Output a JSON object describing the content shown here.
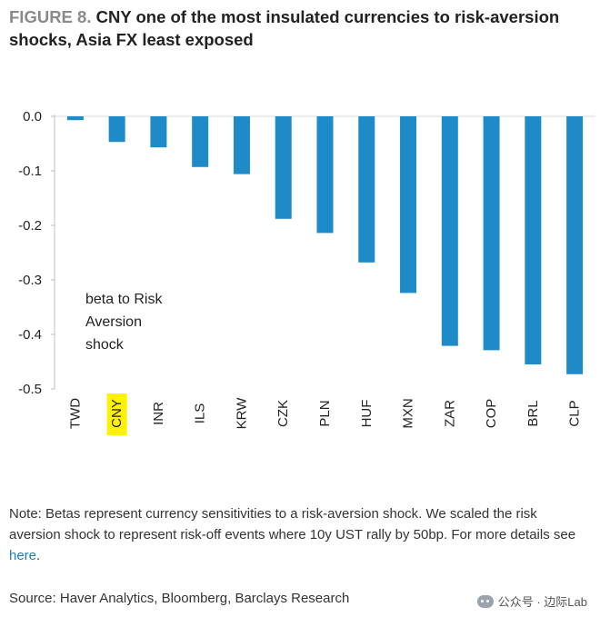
{
  "title": {
    "figure_label": "FIGURE 8.",
    "text": "CNY one of the most insulated currencies to risk-aversion shocks, Asia FX least exposed"
  },
  "chart_data": {
    "type": "bar",
    "categories": [
      "TWD",
      "CNY",
      "INR",
      "ILS",
      "KRW",
      "CZK",
      "PLN",
      "HUF",
      "MXN",
      "ZAR",
      "COP",
      "BRL",
      "CLP"
    ],
    "values": [
      -0.007,
      -0.047,
      -0.057,
      -0.093,
      -0.106,
      -0.188,
      -0.214,
      -0.268,
      -0.324,
      -0.421,
      -0.429,
      -0.455,
      -0.473
    ],
    "highlight_category": "CNY",
    "yticks": [
      "0.0",
      "-0.1",
      "-0.2",
      "-0.3",
      "-0.4",
      "-0.5"
    ],
    "ylim": [
      -0.5,
      0.0
    ],
    "annotation": [
      "beta to Risk",
      "Aversion",
      "shock"
    ],
    "bar_color": "#1f8ac8",
    "highlight_color": "#fff200"
  },
  "note": {
    "text": "Note: Betas represent currency sensitivities to a risk-aversion shock. We scaled the risk aversion shock to represent risk-off events where 10y UST rally by 50bp. For more details see ",
    "link_text": "here",
    "end": "."
  },
  "source": "Source: Haver Analytics, Bloomberg, Barclays Research",
  "watermark": "公众号 · 边际Lab"
}
